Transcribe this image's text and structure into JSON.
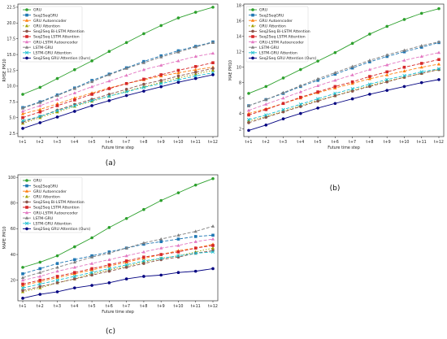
{
  "figure_labels": [
    "(a)",
    "(b)",
    "(c)"
  ],
  "x_label": "Future time step",
  "series_style": [
    {
      "color": "#2ca02c",
      "marker": "o",
      "dash": ""
    },
    {
      "color": "#1f77b4",
      "marker": "s",
      "dash": "4,2"
    },
    {
      "color": "#ff7f0e",
      "marker": "^",
      "dash": "4,2"
    },
    {
      "color": "#a0a000",
      "marker": "^",
      "dash": "1.5,2"
    },
    {
      "color": "#8c564b",
      "marker": "o",
      "dash": "4,2"
    },
    {
      "color": "#d62728",
      "marker": "s",
      "dash": "4,2"
    },
    {
      "color": "#e377c2",
      "marker": "^",
      "dash": "4,2"
    },
    {
      "color": "#7f7f7f",
      "marker": "^",
      "dash": "4,2"
    },
    {
      "color": "#17becf",
      "marker": "x",
      "dash": "4,2"
    },
    {
      "color": "#000080",
      "marker": "o",
      "dash": ""
    }
  ],
  "chart_data": [
    {
      "type": "line",
      "ylabel": "RMSE PM10",
      "xlabel": "Future time step",
      "legend_position": "top-left",
      "grid": false,
      "categories": [
        "t+1",
        "t+2",
        "t+3",
        "t+4",
        "t+5",
        "t+6",
        "t+7",
        "t+8",
        "t+9",
        "t+10",
        "t+11",
        "t+12"
      ],
      "ylim": [
        2.0,
        23.0
      ],
      "yticks": [
        "2.5",
        "5.0",
        "7.5",
        "10.0",
        "12.5",
        "15.0",
        "17.5",
        "20.0",
        "22.5"
      ],
      "ytick_values": [
        2.5,
        5.0,
        7.5,
        10.0,
        12.5,
        15.0,
        17.5,
        20.0,
        22.5
      ],
      "series": [
        {
          "name": "GRU",
          "values": [
            8.7,
            9.8,
            11.2,
            12.6,
            14.0,
            15.5,
            16.9,
            18.3,
            19.6,
            20.8,
            21.7,
            22.5
          ]
        },
        {
          "name": "Seq2SeqGRU",
          "values": [
            6.6,
            7.5,
            8.6,
            9.7,
            10.9,
            11.9,
            12.9,
            13.9,
            14.8,
            15.6,
            16.3,
            17.0
          ]
        },
        {
          "name": "GRU Autoencoder",
          "values": [
            5.6,
            6.3,
            7.2,
            8.1,
            8.9,
            9.7,
            10.4,
            11.0,
            11.6,
            12.1,
            12.6,
            13.0
          ]
        },
        {
          "name": "GRU Attention",
          "values": [
            4.1,
            5.0,
            5.9,
            6.8,
            7.6,
            8.4,
            9.2,
            9.9,
            10.6,
            11.3,
            11.9,
            12.5
          ]
        },
        {
          "name": "Seq2Seq Bi-LSTM Attention",
          "values": [
            4.3,
            5.2,
            6.2,
            7.1,
            7.9,
            8.7,
            9.5,
            10.3,
            10.9,
            11.6,
            12.2,
            12.8
          ]
        },
        {
          "name": "Seq2Seq LSTM Attention",
          "values": [
            5.0,
            5.9,
            6.9,
            7.8,
            8.7,
            9.6,
            10.4,
            11.1,
            11.8,
            12.5,
            13.1,
            13.7
          ]
        },
        {
          "name": "GRU-LSTM Autoencoder",
          "values": [
            6.0,
            6.9,
            7.9,
            8.9,
            9.9,
            10.8,
            11.7,
            12.6,
            13.3,
            14.0,
            14.7,
            15.2
          ]
        },
        {
          "name": "LSTM-GRU",
          "values": [
            6.5,
            7.4,
            8.5,
            9.6,
            10.7,
            11.8,
            12.8,
            13.7,
            14.6,
            15.4,
            16.2,
            16.9
          ]
        },
        {
          "name": "LSTM-GRU Attention",
          "values": [
            4.5,
            5.2,
            6.1,
            6.9,
            7.7,
            8.4,
            9.1,
            9.8,
            10.4,
            11.0,
            11.6,
            12.1
          ]
        },
        {
          "name": "Seq2Seq GRU Attention (Ours)",
          "values": [
            3.3,
            4.2,
            5.1,
            6.0,
            6.9,
            7.7,
            8.5,
            9.2,
            9.9,
            10.6,
            11.2,
            11.8
          ]
        }
      ]
    },
    {
      "type": "line",
      "ylabel": "MAE PM10",
      "xlabel": "Future time step",
      "legend_position": "top-left",
      "grid": false,
      "categories": [
        "t+1",
        "t+2",
        "t+3",
        "t+4",
        "t+5",
        "t+6",
        "t+7",
        "t+8",
        "t+9",
        "t+10",
        "t+11",
        "t+12"
      ],
      "ylim": [
        1.0,
        18.2
      ],
      "yticks": [
        "2",
        "4",
        "6",
        "8",
        "10",
        "12",
        "14",
        "16",
        "18"
      ],
      "ytick_values": [
        2,
        4,
        6,
        8,
        10,
        12,
        14,
        16,
        18
      ],
      "series": [
        {
          "name": "GRU",
          "values": [
            6.6,
            7.5,
            8.6,
            9.7,
            10.8,
            11.9,
            13.1,
            14.3,
            15.3,
            16.2,
            17.0,
            17.6
          ]
        },
        {
          "name": "Seq2SeqGRU",
          "values": [
            5.0,
            5.8,
            6.6,
            7.5,
            8.3,
            9.1,
            9.9,
            10.7,
            11.4,
            12.0,
            12.6,
            13.2
          ]
        },
        {
          "name": "GRU Autoencoder",
          "values": [
            4.0,
            4.6,
            5.3,
            6.0,
            6.7,
            7.3,
            7.9,
            8.5,
            9.0,
            9.5,
            10.0,
            10.4
          ]
        },
        {
          "name": "GRU Attention",
          "values": [
            3.0,
            3.6,
            4.3,
            5.0,
            5.7,
            6.3,
            7.0,
            7.6,
            8.2,
            8.7,
            9.2,
            9.7
          ]
        },
        {
          "name": "Seq2Seq Bi-LSTM Attention",
          "values": [
            2.8,
            3.5,
            4.2,
            4.9,
            5.6,
            6.3,
            6.9,
            7.5,
            8.1,
            8.7,
            9.2,
            9.7
          ]
        },
        {
          "name": "Seq2Seq LSTM Attention",
          "values": [
            3.8,
            4.5,
            5.3,
            6.1,
            6.8,
            7.5,
            8.1,
            8.8,
            9.4,
            10.0,
            10.5,
            11.0
          ]
        },
        {
          "name": "GRU-LSTM Autoencoder",
          "values": [
            4.4,
            5.2,
            6.0,
            6.8,
            7.6,
            8.3,
            9.0,
            9.7,
            10.3,
            10.9,
            11.4,
            11.9
          ]
        },
        {
          "name": "LSTM-GRU",
          "values": [
            5.0,
            5.8,
            6.7,
            7.6,
            8.5,
            9.3,
            10.1,
            10.9,
            11.6,
            12.2,
            12.8,
            13.3
          ]
        },
        {
          "name": "LSTM-GRU Attention",
          "values": [
            3.2,
            3.8,
            4.5,
            5.2,
            5.9,
            6.6,
            7.2,
            7.8,
            8.4,
            8.9,
            9.4,
            9.8
          ]
        },
        {
          "name": "Seq2Seq GRU Attention (Ours)",
          "values": [
            1.8,
            2.5,
            3.3,
            4.0,
            4.7,
            5.3,
            5.9,
            6.5,
            7.0,
            7.5,
            8.0,
            8.4
          ]
        }
      ]
    },
    {
      "type": "line",
      "ylabel": "MAPE PM10",
      "xlabel": "Future time step",
      "legend_position": "top-left",
      "grid": false,
      "categories": [
        "t+1",
        "t+2",
        "t+3",
        "t+4",
        "t+5",
        "t+6",
        "t+7",
        "t+8",
        "t+9",
        "t+10",
        "t+11",
        "t+12"
      ],
      "ylim": [
        4,
        102
      ],
      "yticks": [
        "20",
        "40",
        "60",
        "80",
        "100"
      ],
      "ytick_values": [
        20,
        40,
        60,
        80,
        100
      ],
      "series": [
        {
          "name": "GRU",
          "values": [
            30,
            34,
            39,
            46,
            53,
            61,
            68,
            75,
            82,
            88,
            94,
            99
          ]
        },
        {
          "name": "Seq2SeqGRU",
          "values": [
            25,
            29,
            33,
            36,
            39,
            42,
            45,
            48,
            50,
            52,
            54,
            55
          ]
        },
        {
          "name": "GRU Autoencoder",
          "values": [
            16,
            19,
            22,
            25,
            28,
            31,
            34,
            37,
            40,
            43,
            45,
            48
          ]
        },
        {
          "name": "GRU Attention",
          "values": [
            11,
            14,
            18,
            21,
            25,
            28,
            31,
            34,
            37,
            39,
            42,
            45
          ]
        },
        {
          "name": "Seq2Seq Bi-LSTM Attention",
          "values": [
            12,
            15,
            18,
            21,
            24,
            27,
            30,
            33,
            36,
            38,
            41,
            43
          ]
        },
        {
          "name": "Seq2Seq LSTM Attention",
          "values": [
            17,
            20,
            23,
            26,
            29,
            32,
            35,
            38,
            40,
            42,
            45,
            47
          ]
        },
        {
          "name": "GRU-LSTM Autoencoder",
          "values": [
            20,
            23,
            27,
            30,
            33,
            36,
            39,
            42,
            45,
            47,
            50,
            52
          ]
        },
        {
          "name": "LSTM-GRU",
          "values": [
            22,
            26,
            30,
            34,
            38,
            41,
            45,
            49,
            52,
            55,
            58,
            62
          ]
        },
        {
          "name": "LSTM-GRU Attention",
          "values": [
            14,
            17,
            20,
            23,
            26,
            29,
            32,
            35,
            37,
            39,
            41,
            42
          ]
        },
        {
          "name": "Seq2Seq GRU Attention (Ours)",
          "values": [
            6,
            9,
            11,
            14,
            16,
            18,
            21,
            23,
            24,
            26,
            27,
            29
          ]
        }
      ]
    }
  ]
}
